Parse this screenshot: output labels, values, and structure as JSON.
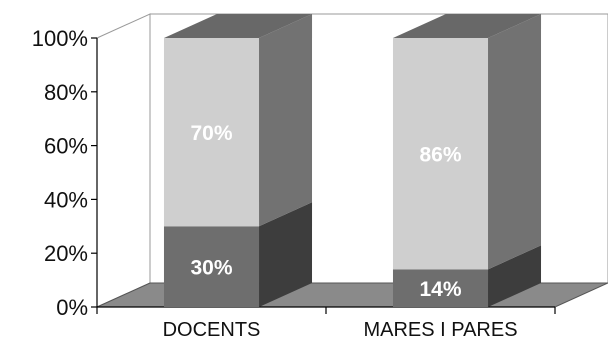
{
  "chart_data": {
    "type": "bar",
    "stacked": true,
    "percent": true,
    "style": "3d",
    "categories": [
      "DOCENTS",
      "MARES I PARES"
    ],
    "series": [
      {
        "values": [
          30,
          14
        ],
        "labels": [
          "30%",
          "14%"
        ],
        "color": "#6e6e6e"
      },
      {
        "values": [
          70,
          86
        ],
        "labels": [
          "70%",
          "86%"
        ],
        "color": "#cfcfcf"
      }
    ],
    "y_ticks": [
      "0%",
      "20%",
      "40%",
      "60%",
      "80%",
      "100%"
    ],
    "ylim": [
      0,
      100
    ],
    "grid": false,
    "legend": "none",
    "title": "",
    "xlabel": "",
    "ylabel": ""
  }
}
